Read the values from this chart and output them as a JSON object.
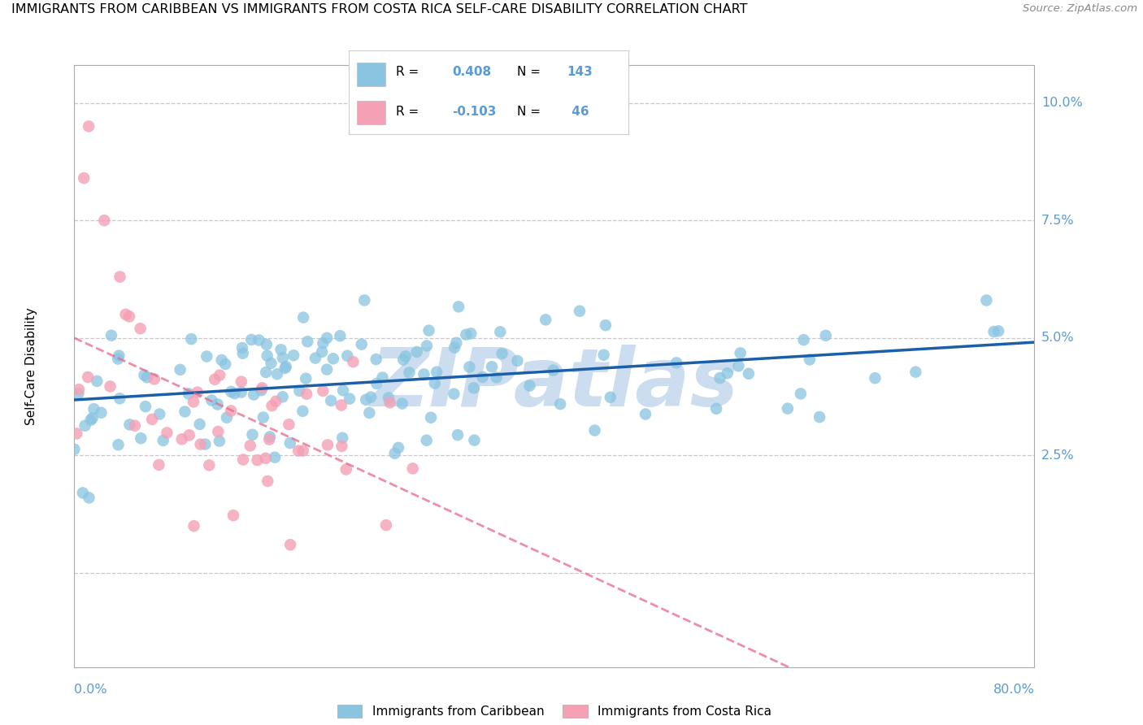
{
  "title": "IMMIGRANTS FROM CARIBBEAN VS IMMIGRANTS FROM COSTA RICA SELF-CARE DISABILITY CORRELATION CHART",
  "source": "Source: ZipAtlas.com",
  "ylabel": "Self-Care Disability",
  "xlim": [
    0.0,
    0.8
  ],
  "ylim": [
    -0.02,
    0.108
  ],
  "y_ticks": [
    0.0,
    0.025,
    0.05,
    0.075,
    0.1
  ],
  "y_tick_labels": [
    "",
    "2.5%",
    "5.0%",
    "7.5%",
    "10.0%"
  ],
  "r_caribbean": 0.408,
  "n_caribbean": 143,
  "r_costa_rica": -0.103,
  "n_costa_rica": 46,
  "color_caribbean": "#89c4e1",
  "color_costa_rica": "#f4a0b5",
  "trend_color_caribbean": "#1a5fa8",
  "trend_color_costa_rica": "#e8698a",
  "background_color": "#ffffff",
  "watermark_text": "ZIPatlas",
  "watermark_color": "#ccddf0",
  "grid_color": "#c8c8c8",
  "axis_label_color": "#5b9bd5",
  "title_fontsize": 11.5,
  "tick_fontsize": 11.5,
  "ylabel_fontsize": 11,
  "legend_fontsize": 11,
  "seed_caribbean": 7,
  "seed_costa_rica": 13
}
